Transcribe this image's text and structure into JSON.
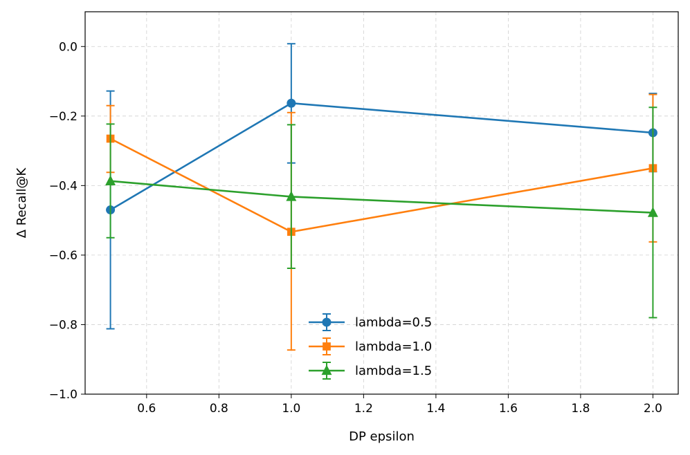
{
  "chart_data": {
    "type": "line",
    "xlabel": "DP epsilon",
    "ylabel": "Δ Recall@K",
    "xlim": [
      0.43,
      2.07
    ],
    "ylim": [
      -1.0,
      0.1
    ],
    "x_ticks": [
      0.6,
      0.8,
      1.0,
      1.2,
      1.4,
      1.6,
      1.8,
      2.0
    ],
    "x_tick_labels": [
      "0.6",
      "0.8",
      "1.0",
      "1.2",
      "1.4",
      "1.6",
      "1.8",
      "2.0"
    ],
    "y_ticks": [
      0.0,
      -0.2,
      -0.4,
      -0.6,
      -0.8,
      -1.0
    ],
    "y_tick_labels": [
      "0.0",
      "−0.2",
      "−0.4",
      "−0.6",
      "−0.8",
      "−1.0"
    ],
    "grid": true,
    "legend_position": "bottom-center",
    "x": [
      0.5,
      1.0,
      2.0
    ],
    "series": [
      {
        "name": "lambda=0.5",
        "color": "#1f77b4",
        "marker": "circle",
        "values": [
          -0.47,
          -0.163,
          -0.248
        ],
        "err_low": [
          -0.812,
          -0.335,
          -0.36
        ],
        "err_high": [
          -0.128,
          0.008,
          -0.135
        ]
      },
      {
        "name": "lambda=1.0",
        "color": "#ff7f0e",
        "marker": "square",
        "values": [
          -0.265,
          -0.533,
          -0.35
        ],
        "err_low": [
          -0.362,
          -0.873,
          -0.562
        ],
        "err_high": [
          -0.17,
          -0.19,
          -0.138
        ]
      },
      {
        "name": "lambda=1.5",
        "color": "#2ca02c",
        "marker": "triangle",
        "values": [
          -0.387,
          -0.432,
          -0.478
        ],
        "err_low": [
          -0.55,
          -0.638,
          -0.78
        ],
        "err_high": [
          -0.223,
          -0.225,
          -0.175
        ]
      }
    ]
  }
}
